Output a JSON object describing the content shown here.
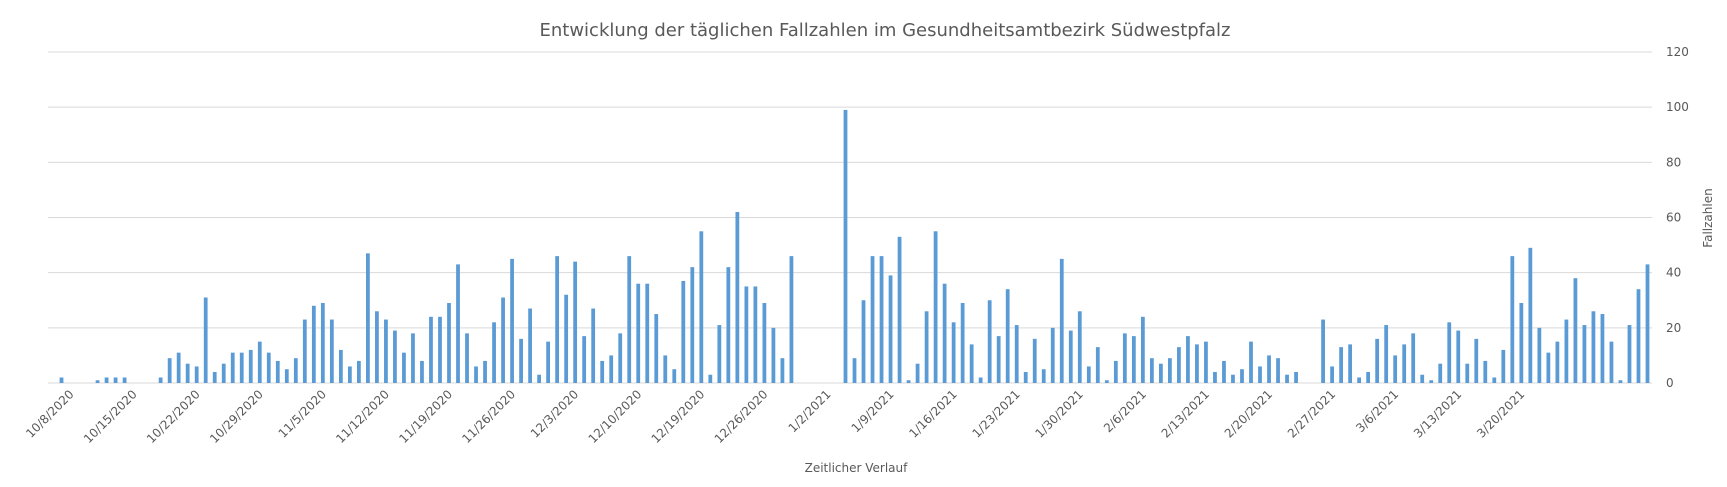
{
  "chart_data": {
    "type": "bar",
    "title": "Entwicklung der täglichen Fallzahlen im Gesundheitsamtbezirk Südwestpfalz",
    "xlabel": "Zeitlicher Verlauf",
    "ylabel": "Fallzahlen",
    "ylim": [
      0,
      120
    ],
    "yticks": [
      0,
      20,
      40,
      60,
      80,
      100,
      120
    ],
    "grid": true,
    "yaxis_position": "right",
    "color": "#5b9bd5",
    "x_tick_labels": [
      "10/8/2020",
      "10/15/2020",
      "10/22/2020",
      "10/29/2020",
      "11/5/2020",
      "11/12/2020",
      "11/19/2020",
      "11/26/2020",
      "12/3/2020",
      "12/10/2020",
      "12/19/2020",
      "12/26/2020",
      "1/2/2021",
      "1/9/2021",
      "1/16/2021",
      "1/23/2021",
      "1/30/2021",
      "2/6/2021",
      "2/13/2021",
      "2/20/2021",
      "2/27/2021",
      "3/6/2021",
      "3/13/2021",
      "3/20/2021"
    ],
    "start_date": "2020-10-06",
    "values": [
      0,
      2,
      0,
      0,
      0,
      1,
      2,
      2,
      2,
      0,
      0,
      0,
      2,
      9,
      11,
      7,
      6,
      31,
      4,
      7,
      11,
      11,
      12,
      15,
      11,
      8,
      5,
      9,
      23,
      28,
      29,
      23,
      12,
      6,
      8,
      47,
      26,
      23,
      19,
      11,
      18,
      8,
      24,
      24,
      29,
      43,
      18,
      6,
      8,
      22,
      31,
      45,
      16,
      27,
      3,
      15,
      46,
      32,
      44,
      17,
      27,
      8,
      10,
      18,
      46,
      36,
      36,
      25,
      10,
      5,
      37,
      42,
      55,
      3,
      21,
      42,
      62,
      35,
      35,
      29,
      20,
      9,
      46,
      0,
      0,
      0,
      0,
      0,
      99,
      9,
      30,
      46,
      46,
      39,
      53,
      1,
      7,
      26,
      55,
      36,
      22,
      29,
      14,
      2,
      30,
      17,
      34,
      21,
      4,
      16,
      5,
      20,
      45,
      19,
      26,
      6,
      13,
      1,
      8,
      18,
      17,
      24,
      9,
      7,
      9,
      13,
      17,
      14,
      15,
      4,
      8,
      3,
      5,
      15,
      6,
      10,
      9,
      3,
      4,
      0,
      0,
      23,
      6,
      13,
      14,
      2,
      4,
      16,
      21,
      10,
      14,
      18,
      3,
      1,
      7,
      22,
      19,
      7,
      16,
      8,
      2,
      12,
      46,
      29,
      49,
      20,
      11,
      15,
      23,
      38,
      21,
      26,
      25,
      15,
      1,
      21,
      34,
      43
    ]
  }
}
